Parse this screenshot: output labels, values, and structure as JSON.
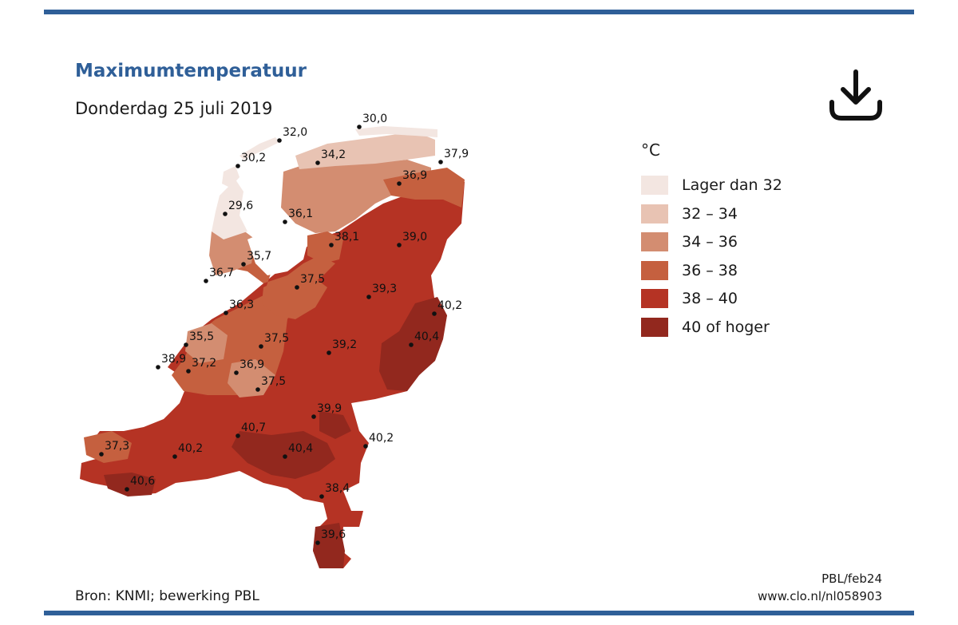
{
  "title": "Maximumtemperatuur",
  "subtitle": "Donderdag 25 juli 2019",
  "legend": {
    "unit": "°C",
    "items": [
      {
        "label": "Lager dan 32",
        "color": "#f3e6e1"
      },
      {
        "label": "32 – 34",
        "color": "#e8c3b3"
      },
      {
        "label": "34 – 36",
        "color": "#d38d71"
      },
      {
        "label": "36 – 38",
        "color": "#c5603f"
      },
      {
        "label": "38 – 40",
        "color": "#b53324"
      },
      {
        "label": "40 of hoger",
        "color": "#92281e"
      }
    ]
  },
  "stations": [
    {
      "value": "32,0"
    },
    {
      "value": "30,0"
    },
    {
      "value": "30,2"
    },
    {
      "value": "34,2"
    },
    {
      "value": "37,9"
    },
    {
      "value": "36,9"
    },
    {
      "value": "29,6"
    },
    {
      "value": "36,1"
    },
    {
      "value": "38,1"
    },
    {
      "value": "39,0"
    },
    {
      "value": "35,7"
    },
    {
      "value": "36,7"
    },
    {
      "value": "37,5"
    },
    {
      "value": "39,3"
    },
    {
      "value": "36,3"
    },
    {
      "value": "40,2"
    },
    {
      "value": "35,5"
    },
    {
      "value": "37,5"
    },
    {
      "value": "40,4"
    },
    {
      "value": "38,9"
    },
    {
      "value": "37,2"
    },
    {
      "value": "36,9"
    },
    {
      "value": "39,2"
    },
    {
      "value": "37,5"
    },
    {
      "value": "39,9"
    },
    {
      "value": "40,7"
    },
    {
      "value": "40,2"
    },
    {
      "value": "37,3"
    },
    {
      "value": "40,2"
    },
    {
      "value": "40,4"
    },
    {
      "value": "40,6"
    },
    {
      "value": "38,4"
    },
    {
      "value": "39,6"
    }
  ],
  "footer": {
    "source": "Bron: KNMI; bewerking PBL",
    "code": "PBL/feb24",
    "url": "www.clo.nl/nl058903"
  },
  "download_icon": "download-icon"
}
